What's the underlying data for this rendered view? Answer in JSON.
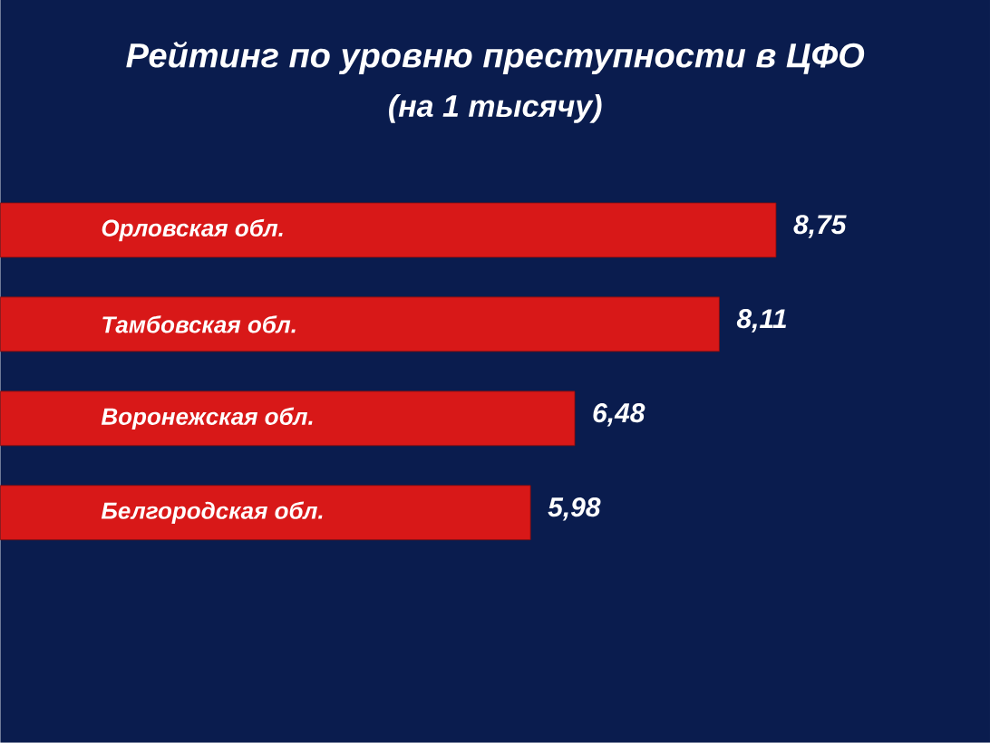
{
  "chart_data": {
    "type": "bar",
    "orientation": "horizontal",
    "title": "Рейтинг по уровню преступности в ЦФО",
    "subtitle": "(на 1 тысячу)",
    "categories": [
      "Орловская обл.",
      "Тамбовская обл.",
      "Воронежская обл.",
      "Белгородская обл."
    ],
    "values": [
      8.75,
      8.11,
      6.48,
      5.98
    ],
    "value_labels": [
      "8,75",
      "8,11",
      "6,48",
      "5,98"
    ],
    "color": "#d81818"
  }
}
